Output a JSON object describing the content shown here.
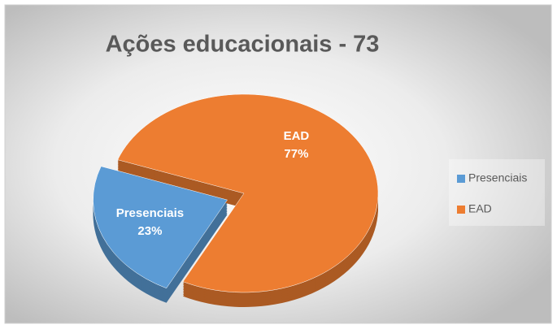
{
  "chart_data": {
    "type": "pie",
    "title": "Ações educacionais - 73",
    "categories": [
      "Presenciais",
      "EAD"
    ],
    "values": [
      23,
      77
    ],
    "value_labels": [
      "23%",
      "77%"
    ],
    "colors": [
      "#5b9bd5",
      "#ed7d31"
    ],
    "legend": "right"
  }
}
